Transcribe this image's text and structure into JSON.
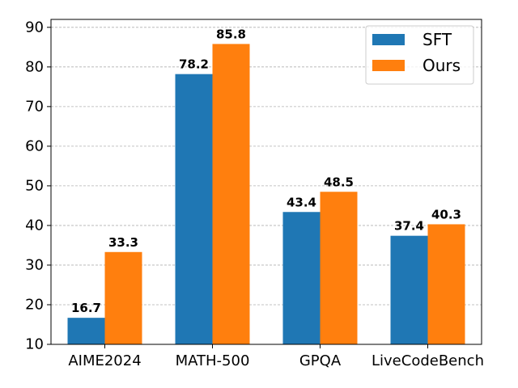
{
  "chart_data": {
    "type": "bar",
    "title": "",
    "xlabel": "",
    "ylabel": "",
    "categories": [
      "AIME2024",
      "MATH-500",
      "GPQA",
      "LiveCodeBench"
    ],
    "series": [
      {
        "name": "SFT",
        "values": [
          16.7,
          78.2,
          43.4,
          37.4
        ],
        "color": "#1f77b4"
      },
      {
        "name": "Ours",
        "values": [
          33.3,
          85.8,
          48.5,
          40.3
        ],
        "color": "#ff7f0e"
      }
    ],
    "ylim": [
      10,
      92
    ],
    "yticks": [
      10,
      20,
      30,
      40,
      50,
      60,
      70,
      80,
      90
    ],
    "grid": true,
    "legend_position": "top-right"
  }
}
